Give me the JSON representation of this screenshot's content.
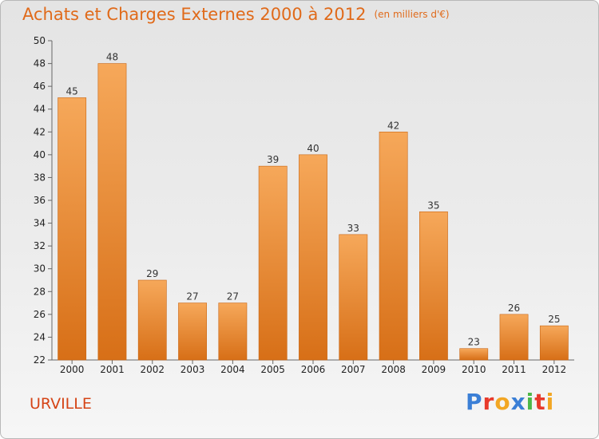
{
  "header": {
    "title": "Achats et Charges Externes 2000 à 2012",
    "unit": "(en milliers d'€)"
  },
  "footer": {
    "place": "URVILLE",
    "brand": "Proxiti",
    "brand_colors": [
      "#3b7fd6",
      "#e83a2b",
      "#f2a623",
      "#3b7fd6",
      "#4cb848",
      "#e83a2b",
      "#f2a623"
    ]
  },
  "colors": {
    "bar_top": "#f6a85a",
    "bar_bottom": "#d76f17",
    "bar_edge": "#c96614",
    "title": "#e06a1a",
    "place": "#d54416"
  },
  "chart_data": {
    "type": "bar",
    "title": "Achats et Charges Externes 2000 à 2012",
    "subtitle": "(en milliers d'€)",
    "categories": [
      "2000",
      "2001",
      "2002",
      "2003",
      "2004",
      "2005",
      "2006",
      "2007",
      "2008",
      "2009",
      "2010",
      "2011",
      "2012"
    ],
    "values": [
      45,
      48,
      29,
      27,
      27,
      39,
      40,
      33,
      42,
      35,
      23,
      26,
      25
    ],
    "ylim": [
      22,
      50
    ],
    "yticks": [
      22,
      24,
      26,
      28,
      30,
      32,
      34,
      36,
      38,
      40,
      42,
      44,
      46,
      48,
      50
    ],
    "data_labels": true,
    "grid": false
  }
}
